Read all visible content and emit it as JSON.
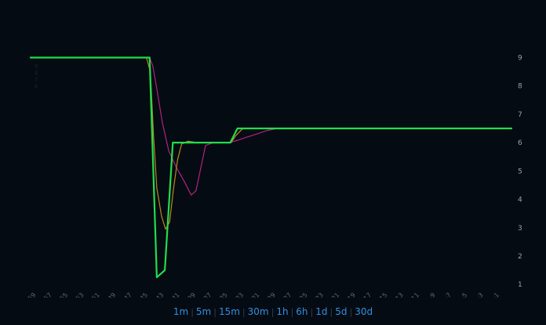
{
  "chart_data": {
    "type": "line",
    "x_ticks": [
      -59,
      -57,
      -55,
      -53,
      -51,
      -49,
      -47,
      -45,
      -43,
      -41,
      -39,
      -37,
      -35,
      -33,
      -31,
      -29,
      -27,
      -25,
      -23,
      -21,
      -19,
      -17,
      -15,
      -13,
      -11,
      -9,
      -7,
      -5,
      -3,
      -1
    ],
    "y_ticks": [
      1,
      2,
      3,
      4,
      5,
      6,
      7,
      8,
      9
    ],
    "xlim": [
      -59.7,
      0.5
    ],
    "ylim": [
      0.95,
      10.2
    ],
    "ghost_ticks": [
      "9",
      "8",
      "7",
      "6"
    ],
    "grid": false,
    "series": [
      {
        "color": "#22dd4a",
        "width": 2.2,
        "x": [
          -59.7,
          -44.8,
          -43.9,
          -42.9,
          -41.9,
          -34.7,
          -33.8,
          0.5
        ],
        "y": [
          9.0,
          9.0,
          1.25,
          1.5,
          6.0,
          6.0,
          6.5,
          6.5
        ]
      },
      {
        "color": "#b98a1e",
        "width": 1.2,
        "x": [
          -59.7,
          -45.2,
          -44.7,
          -44.3,
          -43.9,
          -43.3,
          -42.8,
          -42.3,
          -41.8,
          -41.3,
          -40.8,
          -40.0,
          -38.8,
          -36.0,
          -34.6,
          -34.0,
          -33.2,
          -32.0,
          -30.5,
          -28.8
        ],
        "y": [
          9.0,
          9.0,
          8.5,
          6.2,
          4.4,
          3.4,
          2.95,
          3.2,
          4.4,
          5.4,
          5.95,
          6.05,
          6.0,
          6.0,
          6.0,
          6.25,
          6.48,
          6.5,
          6.5,
          6.5
        ]
      },
      {
        "color": "#b02480",
        "width": 1.2,
        "x": [
          -59.7,
          -44.8,
          -44.4,
          -43.9,
          -43.2,
          -42.4,
          -41.4,
          -40.4,
          -39.6,
          -39.0,
          -38.4,
          -37.8,
          -36.8,
          -35.6,
          -34.8,
          -33.8,
          -32.6,
          -31.4,
          -30.2,
          -28.8
        ],
        "y": [
          9.0,
          9.0,
          8.7,
          7.9,
          6.7,
          5.7,
          5.1,
          4.6,
          4.15,
          4.3,
          5.1,
          5.9,
          6.0,
          6.0,
          6.0,
          6.08,
          6.2,
          6.3,
          6.42,
          6.5
        ]
      }
    ]
  },
  "ranges": {
    "buttons": [
      "1m",
      "5m",
      "15m",
      "30m",
      "1h",
      "6h",
      "1d",
      "5d",
      "30d"
    ],
    "separator": "|"
  }
}
